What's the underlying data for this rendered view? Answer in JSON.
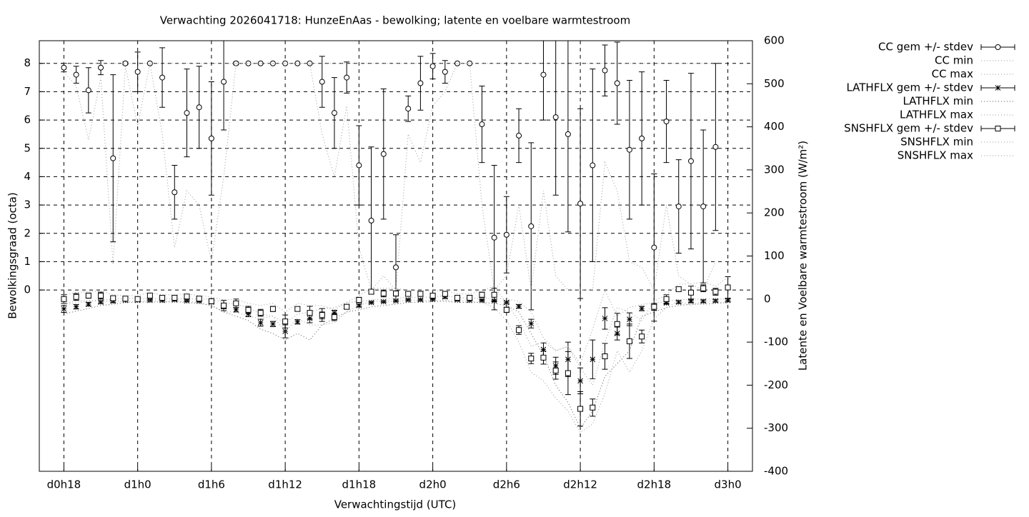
{
  "chart_data": {
    "type": "errorbar",
    "title": "Verwachting 2026041718: HunzeEnAas - bewolking; latente en voelbare warmtestroom",
    "x_label": "Verwachtingstijd (UTC)",
    "y_label": "Bewolkingsgraad (octa)",
    "y2_label": "Latente en Voelbare warmtestroom (W/m²)",
    "x": [
      18,
      19,
      20,
      21,
      22,
      23,
      24,
      25,
      26,
      27,
      28,
      29,
      30,
      31,
      32,
      33,
      34,
      35,
      36,
      37,
      38,
      39,
      40,
      41,
      42,
      43,
      44,
      45,
      46,
      47,
      48,
      49,
      50,
      51,
      52,
      53,
      54,
      55,
      56,
      57,
      58,
      59,
      60,
      61,
      62,
      63,
      64,
      65,
      66,
      67,
      68,
      69,
      70,
      71,
      72
    ],
    "xlim": [
      16,
      74
    ],
    "xticks": [
      {
        "value": 18,
        "label": "d0h18"
      },
      {
        "value": 24,
        "label": "d1h0"
      },
      {
        "value": 30,
        "label": "d1h6"
      },
      {
        "value": 36,
        "label": "d1h12"
      },
      {
        "value": 42,
        "label": "d1h18"
      },
      {
        "value": 48,
        "label": "d2h0"
      },
      {
        "value": 54,
        "label": "d2h6"
      },
      {
        "value": 60,
        "label": "d2h12"
      },
      {
        "value": 66,
        "label": "d2h18"
      },
      {
        "value": 72,
        "label": "d3h0"
      }
    ],
    "ylim": [
      -6.4,
      8.8
    ],
    "yticks": [
      0,
      1,
      2,
      3,
      4,
      5,
      6,
      7,
      8
    ],
    "y2lim": [
      -400,
      600
    ],
    "y2ticks": [
      -400,
      -300,
      -200,
      -100,
      0,
      100,
      200,
      300,
      400,
      500,
      600
    ],
    "grid": true,
    "legend": "outside-top-right",
    "series": [
      {
        "name": "CC gem +/- stdev",
        "style": "errorbar",
        "marker": "circle",
        "axis": "y",
        "color": "#000000",
        "values": [
          7.85,
          7.6,
          7.05,
          7.85,
          4.65,
          8,
          7.7,
          8,
          7.5,
          3.45,
          6.25,
          6.45,
          5.35,
          7.35,
          8,
          8,
          8,
          8,
          8,
          8,
          8,
          7.35,
          6.25,
          7.5,
          4.4,
          2.45,
          4.8,
          0.8,
          6.4,
          7.3,
          7.9,
          7.7,
          8,
          8,
          5.85,
          1.85,
          1.95,
          5.45,
          2.25,
          7.6,
          6.1,
          5.5,
          3.05,
          4.4,
          7.75,
          7.3,
          4.95,
          5.35,
          1.5,
          5.95,
          2.95,
          4.55,
          2.95,
          5.05,
          null
        ],
        "errors": [
          0.15,
          0.3,
          0.8,
          0.25,
          2.95,
          0.05,
          0.7,
          0,
          1.05,
          0.95,
          1.55,
          1.45,
          2,
          1.7,
          0.05,
          0,
          0,
          0,
          0,
          0,
          0,
          0.9,
          1.25,
          0.55,
          1.4,
          2.6,
          2.3,
          1.15,
          0.45,
          0.95,
          0.45,
          0.4,
          0,
          0,
          1.35,
          2.55,
          1.35,
          0.95,
          2.95,
          1.6,
          2.75,
          3.45,
          3.35,
          3.4,
          0.9,
          1.45,
          2.45,
          2.35,
          2.6,
          1.45,
          1.65,
          3.1,
          2.7,
          2.95,
          null
        ]
      },
      {
        "name": "CC min",
        "style": "dotted",
        "axis": "y",
        "color": "#999999",
        "values": [
          7.7,
          7.2,
          5.3,
          7.5,
          0.9,
          7.9,
          5.8,
          8,
          5.5,
          1.5,
          3.5,
          3,
          1,
          4,
          8,
          8,
          8,
          8,
          8,
          8,
          8,
          5.5,
          4,
          6.5,
          1.5,
          0,
          0.5,
          0,
          5.5,
          4.5,
          6.5,
          7,
          8,
          8,
          3,
          0,
          0.5,
          3,
          0,
          3.5,
          0.5,
          0,
          0,
          0,
          4.5,
          3.5,
          1,
          0.8,
          0,
          3,
          0.5,
          0.2,
          0,
          1,
          null
        ]
      },
      {
        "name": "CC max",
        "style": "dotted",
        "axis": "y",
        "color": "#999999",
        "values": [
          8,
          8,
          8,
          8,
          8,
          8,
          8,
          8,
          8,
          8,
          8,
          8,
          8,
          8,
          8,
          8,
          8,
          8,
          8,
          8,
          8,
          8,
          8,
          8,
          8,
          8,
          8,
          8,
          8,
          8,
          8,
          8,
          8,
          8,
          8,
          8,
          8,
          8,
          8,
          8,
          8,
          8,
          8,
          8,
          8,
          8,
          8,
          8,
          8,
          8,
          8,
          8,
          8,
          8,
          null
        ]
      },
      {
        "name": "LATHFLX gem +/- stdev",
        "style": "errorbar",
        "marker": "star",
        "axis": "y2",
        "color": "#000000",
        "values": [
          -23,
          -18,
          -12,
          -7,
          -5,
          -3,
          -3,
          -3,
          -3,
          -2,
          -4,
          -5,
          -7,
          -18,
          -25,
          -35,
          -55,
          -58,
          -75,
          -53,
          -45,
          -38,
          -32,
          -17,
          -15,
          -8,
          -6,
          -4,
          -2,
          -2,
          -1,
          5,
          -2,
          -3,
          -3,
          -4,
          -8,
          -17,
          -57,
          -117,
          -155,
          -140,
          -190,
          -140,
          -45,
          -80,
          -47,
          -22,
          -17,
          -9,
          -7,
          -5,
          -5,
          -4,
          -3
        ],
        "errors": [
          8,
          5,
          4,
          3,
          3,
          2,
          2,
          2,
          2,
          2,
          2,
          2,
          3,
          4,
          5,
          6,
          8,
          6,
          15,
          5,
          10,
          8,
          6,
          3,
          3,
          2,
          2,
          2,
          2,
          2,
          2,
          3,
          2,
          2,
          2,
          2,
          3,
          4,
          10,
          15,
          20,
          40,
          30,
          45,
          25,
          15,
          15,
          5,
          4,
          3,
          3,
          3,
          3,
          3,
          3
        ]
      },
      {
        "name": "LATHFLX min",
        "style": "dotted",
        "axis": "y2",
        "color": "#555555",
        "values": [
          -35,
          -28,
          -22,
          -15,
          -12,
          -8,
          -7,
          -7,
          -7,
          -6,
          -8,
          -10,
          -15,
          -30,
          -40,
          -50,
          -70,
          -80,
          -95,
          -80,
          -95,
          -60,
          -45,
          -30,
          -25,
          -18,
          -15,
          -12,
          -8,
          -7,
          -6,
          -5,
          -8,
          -8,
          -8,
          -10,
          -15,
          -30,
          -80,
          -130,
          -200,
          -240,
          -300,
          -260,
          -180,
          -150,
          -120,
          -40,
          -30,
          -20,
          -15,
          -12,
          -12,
          -10,
          -8
        ]
      },
      {
        "name": "LATHFLX max",
        "style": "dotted",
        "axis": "y2",
        "color": "#999999",
        "values": [
          -12,
          -10,
          -5,
          -2,
          0,
          2,
          2,
          1,
          1,
          1,
          0,
          0,
          0,
          -8,
          -12,
          -20,
          -35,
          -40,
          -55,
          -35,
          -30,
          -22,
          -20,
          -8,
          -6,
          -2,
          0,
          2,
          4,
          4,
          5,
          8,
          4,
          2,
          2,
          1,
          0,
          -5,
          -30,
          -90,
          -120,
          -110,
          -150,
          -70,
          20,
          -40,
          -20,
          -12,
          -10,
          -5,
          -2,
          0,
          0,
          0,
          0
        ]
      },
      {
        "name": "SNSHFLX gem +/- stdev",
        "style": "errorbar",
        "marker": "square",
        "axis": "y2",
        "color": "#000000",
        "values": [
          0,
          5,
          8,
          8,
          2,
          1,
          0,
          8,
          3,
          3,
          6,
          1,
          -5,
          -15,
          -10,
          -25,
          -32,
          -23,
          -52,
          -23,
          -32,
          -37,
          -42,
          -18,
          -2,
          17,
          13,
          13,
          12,
          12,
          8,
          12,
          3,
          3,
          10,
          10,
          -25,
          -72,
          -138,
          -136,
          -166,
          -172,
          -255,
          -252,
          -133,
          -58,
          -98,
          -87,
          -18,
          0,
          23,
          15,
          25,
          17,
          27
        ],
        "errors": [
          10,
          8,
          6,
          8,
          5,
          4,
          4,
          6,
          4,
          4,
          5,
          4,
          6,
          12,
          10,
          8,
          8,
          6,
          15,
          5,
          15,
          15,
          8,
          5,
          6,
          5,
          8,
          6,
          5,
          6,
          5,
          5,
          5,
          5,
          6,
          15,
          6,
          10,
          12,
          15,
          20,
          50,
          40,
          20,
          30,
          25,
          40,
          15,
          8,
          10,
          5,
          15,
          8,
          8,
          25
        ]
      },
      {
        "name": "SNSHFLX min",
        "style": "dotted",
        "axis": "y2",
        "color": "#999999",
        "values": [
          -10,
          -5,
          -3,
          -5,
          -5,
          -5,
          -6,
          -3,
          -5,
          -5,
          -5,
          -8,
          -15,
          -30,
          -30,
          -40,
          -45,
          -40,
          -75,
          -45,
          -60,
          -60,
          -55,
          -30,
          -15,
          -5,
          -5,
          -5,
          -3,
          -3,
          -3,
          -3,
          -5,
          -5,
          -8,
          -20,
          -50,
          -100,
          -170,
          -190,
          -230,
          -260,
          -310,
          -290,
          -220,
          -120,
          -170,
          -120,
          -45,
          -20,
          -5,
          -15,
          -5,
          -5,
          -10
        ]
      },
      {
        "name": "SNSHFLX max",
        "style": "dotted",
        "axis": "y2",
        "color": "#999999",
        "values": [
          10,
          15,
          18,
          18,
          10,
          8,
          8,
          15,
          10,
          10,
          12,
          8,
          5,
          -2,
          0,
          -10,
          -15,
          -10,
          -30,
          -10,
          -15,
          -15,
          -25,
          -8,
          8,
          25,
          25,
          25,
          20,
          20,
          18,
          20,
          12,
          12,
          20,
          30,
          -10,
          -50,
          -110,
          -100,
          -120,
          -110,
          -160,
          -200,
          -100,
          -20,
          -30,
          -50,
          -5,
          10,
          35,
          35,
          40,
          30,
          50
        ]
      }
    ]
  }
}
